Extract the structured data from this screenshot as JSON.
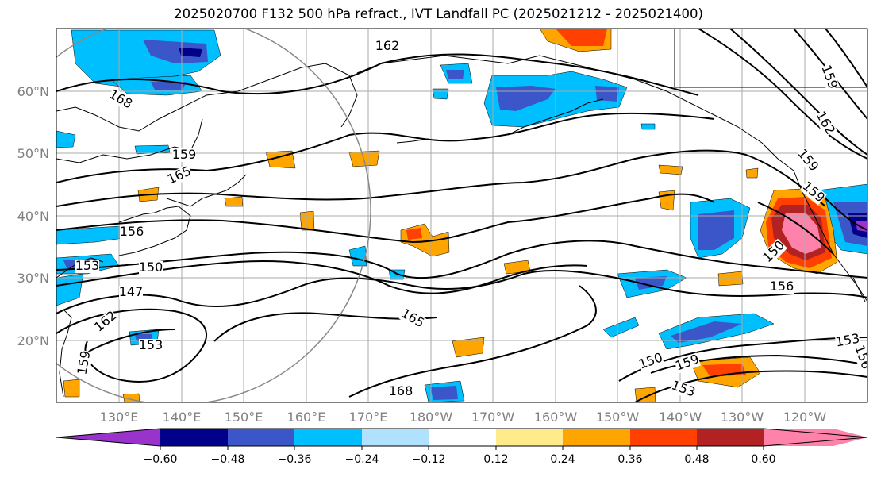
{
  "title": "2025020700 F132 500 hPa refract., IVT Landfall PC (2025021212 - 2025021400)",
  "lat_labels": [
    "60°N",
    "50°N",
    "40°N",
    "30°N",
    "20°N"
  ],
  "lon_labels": [
    "130°E",
    "140°E",
    "150°E",
    "160°E",
    "170°E",
    "180°W",
    "170°W",
    "160°W",
    "150°W",
    "140°W",
    "130°W",
    "120°W"
  ],
  "contour_labels": [
    "168",
    "165",
    "162",
    "159",
    "156",
    "153",
    "150",
    "147",
    "168",
    "165",
    "162",
    "159",
    "159",
    "150",
    "156",
    "159",
    "153",
    "153",
    "153",
    "156",
    "159",
    "162",
    "159",
    "150"
  ],
  "colorbar": {
    "ticks": [
      "−0.60",
      "−0.48",
      "−0.36",
      "−0.24",
      "−0.12",
      "0.12",
      "0.24",
      "0.36",
      "0.48",
      "0.60"
    ],
    "colors": [
      "#9933cc",
      "#00008b",
      "#3a56c9",
      "#00bfff",
      "#b0e2ff",
      "#ffffff",
      "#ffeb8a",
      "#ffa500",
      "#ff4000",
      "#b22222",
      "#ff82ab",
      "#ff82ab"
    ]
  },
  "colors": {
    "contour": "#000000",
    "grid": "#aaaaaa",
    "axis_label": "#808080",
    "circle": "#888888"
  }
}
